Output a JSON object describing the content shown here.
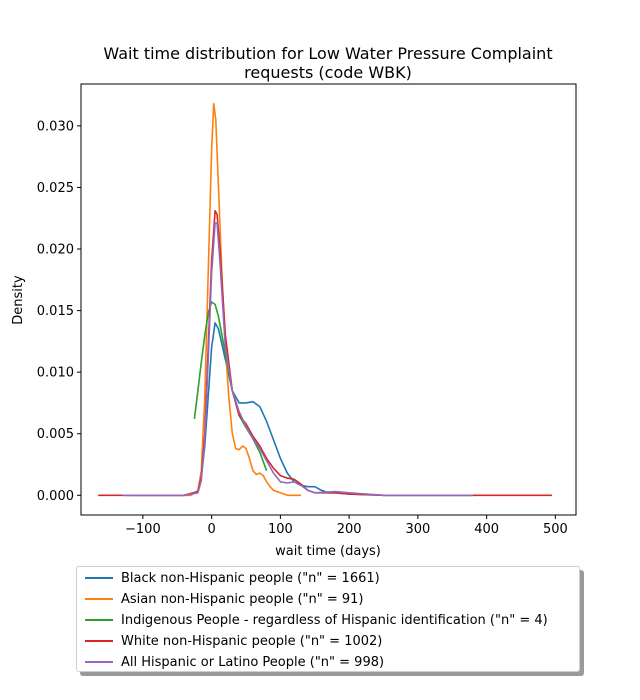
{
  "chart_data": {
    "type": "line",
    "title": "Wait time distribution  for Low Water Pressure Complaint",
    "title_line2": "requests (code WBK)",
    "xlabel": "wait time (days)",
    "ylabel": "Density",
    "xlim": [
      -190,
      530
    ],
    "ylim": [
      -0.0016,
      0.0334
    ],
    "x_ticks": [
      -100,
      0,
      100,
      200,
      300,
      400,
      500
    ],
    "x_tick_labels": [
      "−100",
      "0",
      "100",
      "200",
      "300",
      "400",
      "500"
    ],
    "y_ticks": [
      0.0,
      0.005,
      0.01,
      0.015,
      0.02,
      0.025,
      0.03
    ],
    "y_tick_labels": [
      "0.000",
      "0.005",
      "0.010",
      "0.015",
      "0.020",
      "0.025",
      "0.030"
    ],
    "grid": false,
    "legend_placement": "below",
    "series": [
      {
        "name": "Black non-Hispanic people (\"n\" = 1661)",
        "color": "#1f77b4",
        "points": [
          [
            -120,
            0
          ],
          [
            -40,
            0
          ],
          [
            -20,
            0.0003
          ],
          [
            -15,
            0.0015
          ],
          [
            -10,
            0.004
          ],
          [
            -5,
            0.008
          ],
          [
            0,
            0.012
          ],
          [
            5,
            0.014
          ],
          [
            10,
            0.0135
          ],
          [
            20,
            0.011
          ],
          [
            30,
            0.0085
          ],
          [
            40,
            0.0075
          ],
          [
            50,
            0.0075
          ],
          [
            60,
            0.0076
          ],
          [
            70,
            0.0072
          ],
          [
            80,
            0.006
          ],
          [
            90,
            0.0045
          ],
          [
            100,
            0.003
          ],
          [
            110,
            0.0018
          ],
          [
            120,
            0.0011
          ],
          [
            130,
            0.0008
          ],
          [
            140,
            0.0007
          ],
          [
            150,
            0.0007
          ],
          [
            160,
            0.0004
          ],
          [
            170,
            0.0002
          ],
          [
            180,
            0.0002
          ],
          [
            200,
            0.0001
          ],
          [
            250,
            0
          ],
          [
            300,
            0
          ],
          [
            380,
            0
          ]
        ]
      },
      {
        "name": "Asian non-Hispanic people (\"n\" = 91)",
        "color": "#ff7f0e",
        "points": [
          [
            -125,
            0
          ],
          [
            -30,
            0
          ],
          [
            -20,
            0.0004
          ],
          [
            -15,
            0.002
          ],
          [
            -10,
            0.008
          ],
          [
            -5,
            0.018
          ],
          [
            0,
            0.028
          ],
          [
            3,
            0.0318
          ],
          [
            6,
            0.0305
          ],
          [
            10,
            0.025
          ],
          [
            15,
            0.018
          ],
          [
            20,
            0.012
          ],
          [
            25,
            0.008
          ],
          [
            30,
            0.005
          ],
          [
            35,
            0.0038
          ],
          [
            40,
            0.0037
          ],
          [
            45,
            0.004
          ],
          [
            50,
            0.0038
          ],
          [
            55,
            0.003
          ],
          [
            60,
            0.002
          ],
          [
            65,
            0.0017
          ],
          [
            70,
            0.0018
          ],
          [
            75,
            0.0016
          ],
          [
            80,
            0.0011
          ],
          [
            85,
            0.0007
          ],
          [
            90,
            0.0004
          ],
          [
            100,
            0.0002
          ],
          [
            110,
            0
          ],
          [
            130,
            0
          ]
        ]
      },
      {
        "name": "Indigenous People - regardless of Hispanic identification (\"n\" = 4)",
        "color": "#2ca02c",
        "points": [
          [
            -25,
            0.0062
          ],
          [
            -20,
            0.0085
          ],
          [
            -15,
            0.0108
          ],
          [
            -10,
            0.013
          ],
          [
            -5,
            0.0148
          ],
          [
            0,
            0.0157
          ],
          [
            5,
            0.0155
          ],
          [
            10,
            0.0145
          ],
          [
            20,
            0.0115
          ],
          [
            30,
            0.0085
          ],
          [
            40,
            0.0065
          ],
          [
            50,
            0.0055
          ],
          [
            60,
            0.0046
          ],
          [
            70,
            0.0035
          ],
          [
            80,
            0.002
          ]
        ]
      },
      {
        "name": "White non-Hispanic people (\"n\" = 1002)",
        "color": "#d62728",
        "points": [
          [
            -165,
            0
          ],
          [
            -40,
            0
          ],
          [
            -20,
            0.0003
          ],
          [
            -15,
            0.0015
          ],
          [
            -10,
            0.005
          ],
          [
            -5,
            0.012
          ],
          [
            0,
            0.019
          ],
          [
            5,
            0.0231
          ],
          [
            8,
            0.0228
          ],
          [
            12,
            0.02
          ],
          [
            20,
            0.013
          ],
          [
            30,
            0.0085
          ],
          [
            40,
            0.0065
          ],
          [
            50,
            0.0058
          ],
          [
            60,
            0.0048
          ],
          [
            70,
            0.004
          ],
          [
            80,
            0.003
          ],
          [
            90,
            0.0022
          ],
          [
            100,
            0.0016
          ],
          [
            110,
            0.0014
          ],
          [
            120,
            0.0013
          ],
          [
            130,
            0.0009
          ],
          [
            140,
            0.0004
          ],
          [
            150,
            0.0002
          ],
          [
            180,
            0.0002
          ],
          [
            200,
            0.0001
          ],
          [
            250,
            0
          ],
          [
            400,
            0
          ],
          [
            495,
            0
          ]
        ]
      },
      {
        "name": "All Hispanic or Latino People (\"n\" = 998)",
        "color": "#9467bd",
        "points": [
          [
            -130,
            0
          ],
          [
            -40,
            0
          ],
          [
            -20,
            0.0002
          ],
          [
            -15,
            0.0012
          ],
          [
            -10,
            0.0045
          ],
          [
            -5,
            0.011
          ],
          [
            0,
            0.018
          ],
          [
            5,
            0.0221
          ],
          [
            8,
            0.0221
          ],
          [
            12,
            0.019
          ],
          [
            20,
            0.012
          ],
          [
            30,
            0.0085
          ],
          [
            40,
            0.0068
          ],
          [
            50,
            0.0056
          ],
          [
            60,
            0.0046
          ],
          [
            70,
            0.0038
          ],
          [
            80,
            0.0028
          ],
          [
            90,
            0.0018
          ],
          [
            100,
            0.0011
          ],
          [
            110,
            0.001
          ],
          [
            120,
            0.0011
          ],
          [
            130,
            0.0008
          ],
          [
            140,
            0.0004
          ],
          [
            150,
            0.0002
          ],
          [
            180,
            0.0003
          ],
          [
            200,
            0.0002
          ],
          [
            250,
            0
          ],
          [
            300,
            0
          ],
          [
            380,
            0
          ]
        ]
      }
    ]
  }
}
